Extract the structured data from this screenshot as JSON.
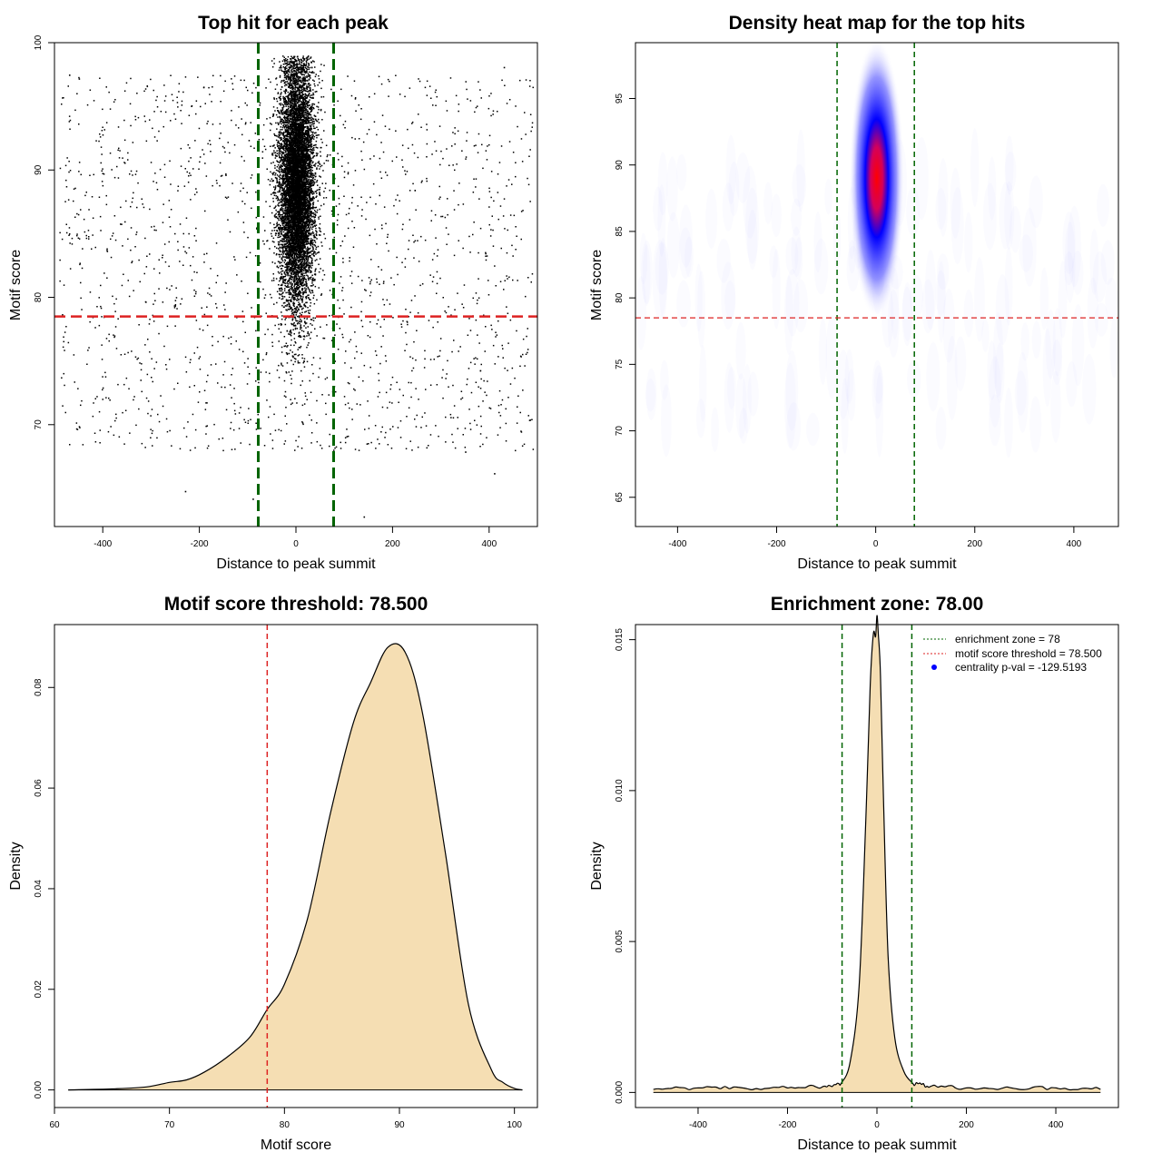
{
  "chart_data": [
    {
      "type": "scatter",
      "title": "Top hit for each peak",
      "xlabel": "Distance to peak summit",
      "ylabel": "Motif score",
      "xlim": [
        -500,
        500
      ],
      "ylim": [
        62,
        100
      ],
      "xticks": [
        -400,
        -200,
        0,
        200,
        400
      ],
      "yticks": [
        70,
        80,
        90,
        100
      ],
      "background_points": {
        "x_range": [
          -490,
          490
        ],
        "y_range": [
          68,
          97.5
        ],
        "count": 1700
      },
      "central_cluster": {
        "x_center": 0,
        "x_sd": 18,
        "y_center": 89,
        "y_sd": 4.8,
        "count": 9000
      },
      "outliers": [
        {
          "x": -470,
          "y": 97.5
        },
        {
          "x": -450,
          "y": 97.2
        },
        {
          "x": 430,
          "y": 98.1
        },
        {
          "x": -230,
          "y": 64.8
        },
        {
          "x": 140,
          "y": 62.8
        },
        {
          "x": 410,
          "y": 66.2
        },
        {
          "x": 350,
          "y": 67.9
        },
        {
          "x": -90,
          "y": 64.2
        }
      ],
      "vlines": [
        -78,
        78
      ],
      "hline": 78.5,
      "vline_color": "#006400",
      "hline_color": "#dd2222"
    },
    {
      "type": "heatmap",
      "title": "Density heat map for the top hits",
      "xlabel": "Distance to peak summit",
      "ylabel": "Motif score",
      "xlim": [
        -485,
        490
      ],
      "ylim": [
        62.8,
        99.2
      ],
      "xticks": [
        -400,
        -200,
        0,
        200,
        400
      ],
      "yticks": [
        65,
        70,
        75,
        80,
        85,
        90,
        95
      ],
      "hotspot": {
        "x": 2,
        "y": 89,
        "x_sd": 22,
        "y_sd": 4.2
      },
      "colors": [
        "#ffffff",
        "#0000ff",
        "#ff0000"
      ],
      "vlines": [
        -78,
        78
      ],
      "hline": 78.5,
      "vline_color": "#006400",
      "hline_color": "#dd2222"
    },
    {
      "type": "area",
      "title": "Motif score threshold: 78.500",
      "xlabel": "Motif score",
      "ylabel": "Density",
      "xlim": [
        60,
        102
      ],
      "ylim": [
        -0.0035,
        0.0925
      ],
      "xticks": [
        60,
        70,
        80,
        90,
        100
      ],
      "yticks": [
        0.0,
        0.02,
        0.04,
        0.06,
        0.08
      ],
      "x": [
        61.2,
        65,
        68,
        70,
        71.5,
        73,
        75,
        77,
        78.5,
        80,
        82,
        84,
        86,
        87.5,
        89,
        90.5,
        92,
        94,
        96,
        98,
        99,
        100,
        100.7
      ],
      "y": [
        0.0,
        0.0002,
        0.0006,
        0.0015,
        0.002,
        0.0035,
        0.0065,
        0.0105,
        0.016,
        0.021,
        0.034,
        0.055,
        0.073,
        0.081,
        0.088,
        0.087,
        0.075,
        0.047,
        0.017,
        0.004,
        0.0015,
        0.0003,
        0.0
      ],
      "threshold": 78.5,
      "fill": "#f5deb3",
      "threshold_color": "#dd2222"
    },
    {
      "type": "area",
      "title": "Enrichment zone: 78.00",
      "xlabel": "Distance to peak summit",
      "ylabel": "Density",
      "xlim": [
        -540,
        540
      ],
      "ylim": [
        -0.0005,
        0.0155
      ],
      "xticks": [
        -400,
        -200,
        0,
        200,
        400
      ],
      "yticks": [
        0.0,
        0.005,
        0.01,
        0.015
      ],
      "x": [
        -500,
        -400,
        -300,
        -200,
        -120,
        -80,
        -60,
        -40,
        -25,
        -15,
        -8,
        -3,
        0,
        3,
        8,
        15,
        25,
        40,
        60,
        80,
        120,
        200,
        300,
        400,
        500
      ],
      "y": [
        0.0001,
        0.00015,
        0.00015,
        0.00015,
        0.0002,
        0.0003,
        0.001,
        0.0035,
        0.009,
        0.0135,
        0.0152,
        0.0151,
        0.0158,
        0.0152,
        0.0138,
        0.0095,
        0.0045,
        0.0018,
        0.0007,
        0.0003,
        0.0002,
        0.00015,
        0.00015,
        0.00015,
        0.0001
      ],
      "zone": [
        -78,
        78
      ],
      "fill": "#f5deb3",
      "zone_color": "#006400",
      "legend": [
        {
          "label": "enrichment zone = 78",
          "color": "#006400",
          "kind": "dotted-line"
        },
        {
          "label": "motif score threshold = 78.500",
          "color": "#dd2222",
          "kind": "dotted-line"
        },
        {
          "label": "centrality p-val = -129.5193",
          "color": "#0000ff",
          "kind": "point"
        }
      ],
      "legend_position": "top-right"
    }
  ]
}
